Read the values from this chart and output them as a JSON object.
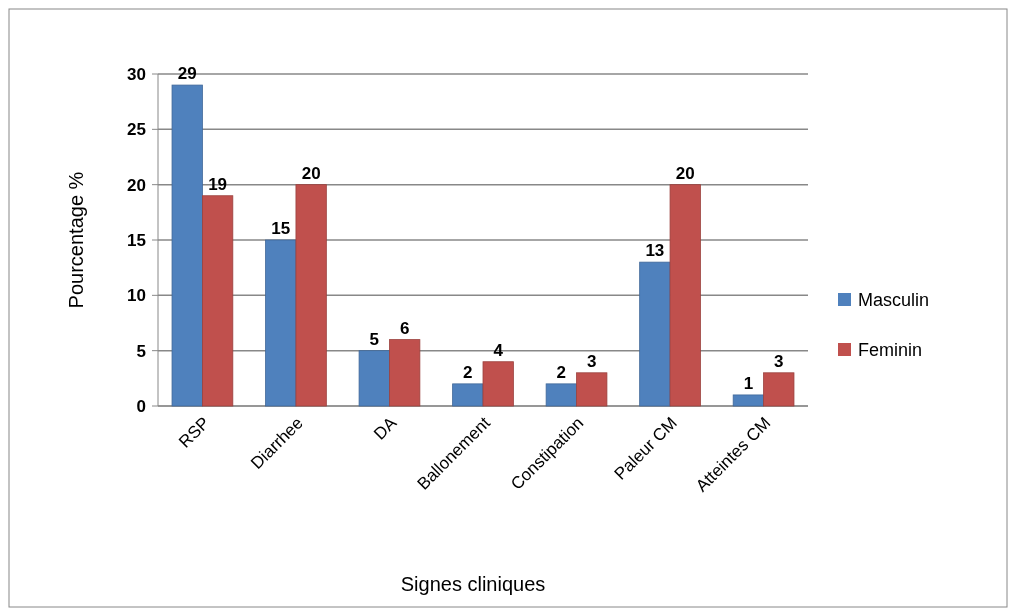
{
  "chart_data": {
    "type": "bar",
    "xlabel": "Signes cliniques",
    "ylabel": "Pourcentage %",
    "categories": [
      "RSP",
      "Diarrhee",
      "DA",
      "Ballonement",
      "Constipation",
      "Paleur CM",
      "Atteintes CM"
    ],
    "series": [
      {
        "name": "Masculin",
        "color": "#4f81bd",
        "values": [
          29,
          15,
          5,
          2,
          2,
          13,
          1
        ]
      },
      {
        "name": "Feminin",
        "color": "#c0504d",
        "values": [
          19,
          20,
          6,
          4,
          3,
          20,
          3
        ]
      }
    ],
    "ylim": [
      0,
      30
    ],
    "yticks": [
      0,
      5,
      10,
      15,
      20,
      25,
      30
    ],
    "grid": "y",
    "legend": "right",
    "data_labels": true
  }
}
